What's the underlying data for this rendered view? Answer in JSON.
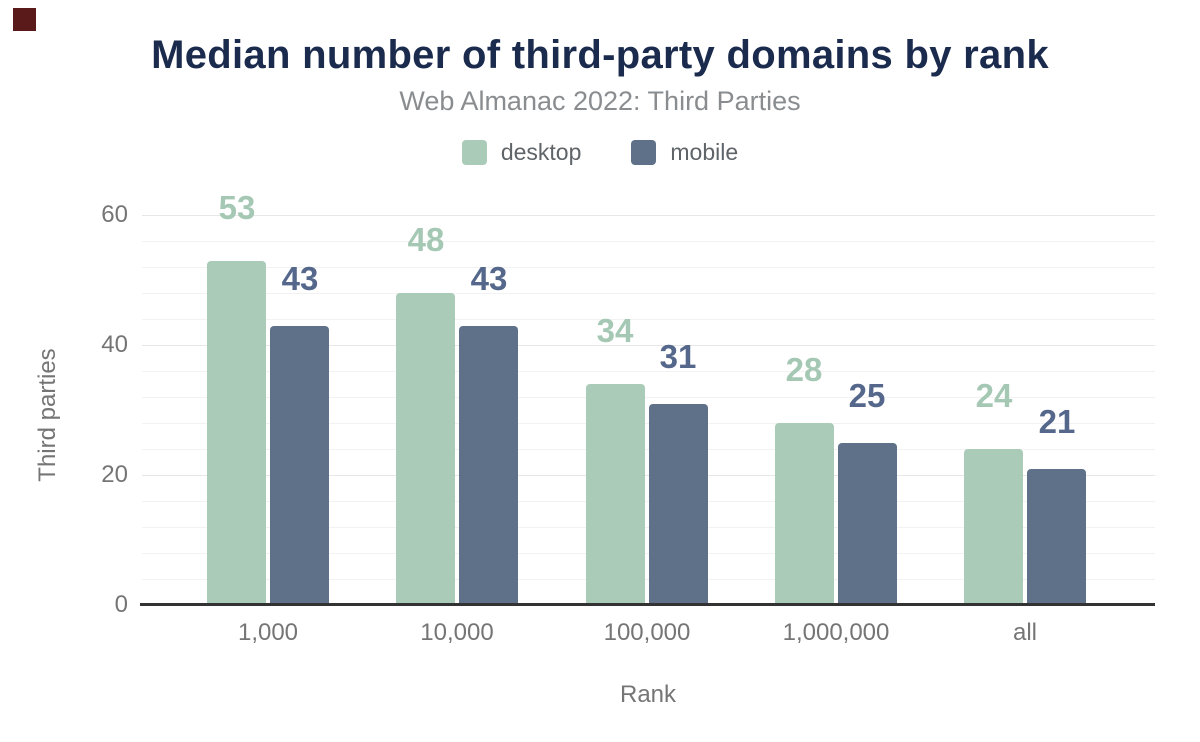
{
  "corner_marker": {
    "color": "#5a1a1a"
  },
  "chart_data": {
    "type": "bar",
    "title": "Median number of third-party domains by rank",
    "subtitle": "Web Almanac 2022: Third Parties",
    "categories": [
      "1,000",
      "10,000",
      "100,000",
      "1,000,000",
      "all"
    ],
    "series": [
      {
        "name": "desktop",
        "color": "#a9cbb8",
        "label_color": "#a5c8b4",
        "values": [
          53,
          48,
          34,
          28,
          24
        ]
      },
      {
        "name": "mobile",
        "color": "#5f7189",
        "label_color": "#55688c",
        "values": [
          43,
          43,
          31,
          25,
          21
        ]
      }
    ],
    "xlabel": "Rank",
    "ylabel": "Third parties",
    "ylim": [
      0,
      60
    ],
    "y_ticks": [
      0,
      20,
      40,
      60
    ],
    "y_minor_step": 4,
    "grid": true,
    "legend_position": "top",
    "value_labels": true
  },
  "colors": {
    "title": "#1b2b4d",
    "subtitle": "#8a8d90",
    "axis_text": "#757575",
    "legend_text": "#5f6468",
    "grid_minor": "#f2f2f2",
    "grid_major": "#e7e7e7",
    "axis_line": "#333333",
    "background": "#ffffff"
  }
}
